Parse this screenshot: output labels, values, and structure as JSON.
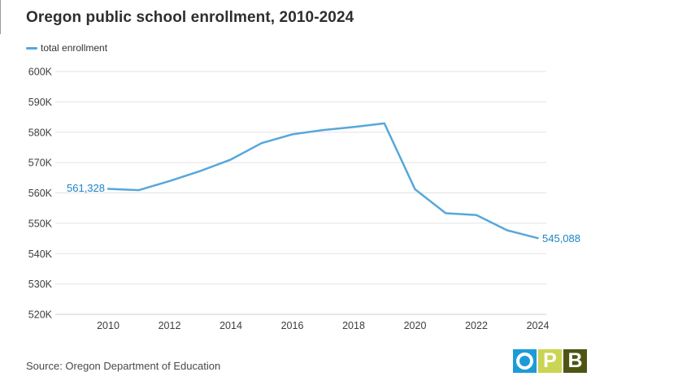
{
  "page": {
    "source": "Source: Oregon Department of Education"
  },
  "theme": {
    "accent_blue": "#57a7db",
    "label_blue": "#1b84c6",
    "grid_gray": "#e3e3e3",
    "grid_bottom_gray": "#cfcfcf",
    "tick_text": "#3d3d3d",
    "logo_blue": "#1d9bd7",
    "logo_green": "#c9d553",
    "logo_olive": "#4e5514"
  },
  "logo": {
    "name": "OPB",
    "tiles": [
      {
        "letter": "O"
      },
      {
        "letter": "P"
      },
      {
        "letter": "B"
      }
    ]
  },
  "chart_data": {
    "type": "line",
    "title": "Oregon public school enrollment, 2010-2024",
    "xlabel": "",
    "ylabel": "",
    "grid": "horizontal",
    "legend_position": "top-left",
    "ylim": [
      520000,
      600000
    ],
    "x": [
      2010,
      2011,
      2012,
      2013,
      2014,
      2015,
      2016,
      2017,
      2018,
      2019,
      2020,
      2021,
      2022,
      2023,
      2024
    ],
    "x_tick_labels": [
      "2010",
      "2012",
      "2014",
      "2016",
      "2018",
      "2020",
      "2022",
      "2024"
    ],
    "y_ticks": [
      {
        "value": 600000,
        "label": "600K"
      },
      {
        "value": 590000,
        "label": "590K"
      },
      {
        "value": 580000,
        "label": "580K"
      },
      {
        "value": 570000,
        "label": "570K"
      },
      {
        "value": 560000,
        "label": "560K"
      },
      {
        "value": 550000,
        "label": "550K"
      },
      {
        "value": 540000,
        "label": "540K"
      },
      {
        "value": 530000,
        "label": "530K"
      },
      {
        "value": 520000,
        "label": "520K"
      }
    ],
    "series": [
      {
        "name": "total enrollment",
        "color": "#57a7db",
        "values": [
          561328,
          560900,
          563900,
          567200,
          571000,
          576400,
          579300,
          580700,
          581700,
          582900,
          561200,
          553300,
          552700,
          547700,
          545088
        ]
      }
    ],
    "annotations": [
      {
        "x": 2010,
        "value": 561328,
        "text": "561,328",
        "position": "left-of-first-point"
      },
      {
        "x": 2024,
        "value": 545088,
        "text": "545,088",
        "position": "right-of-last-point"
      }
    ]
  }
}
